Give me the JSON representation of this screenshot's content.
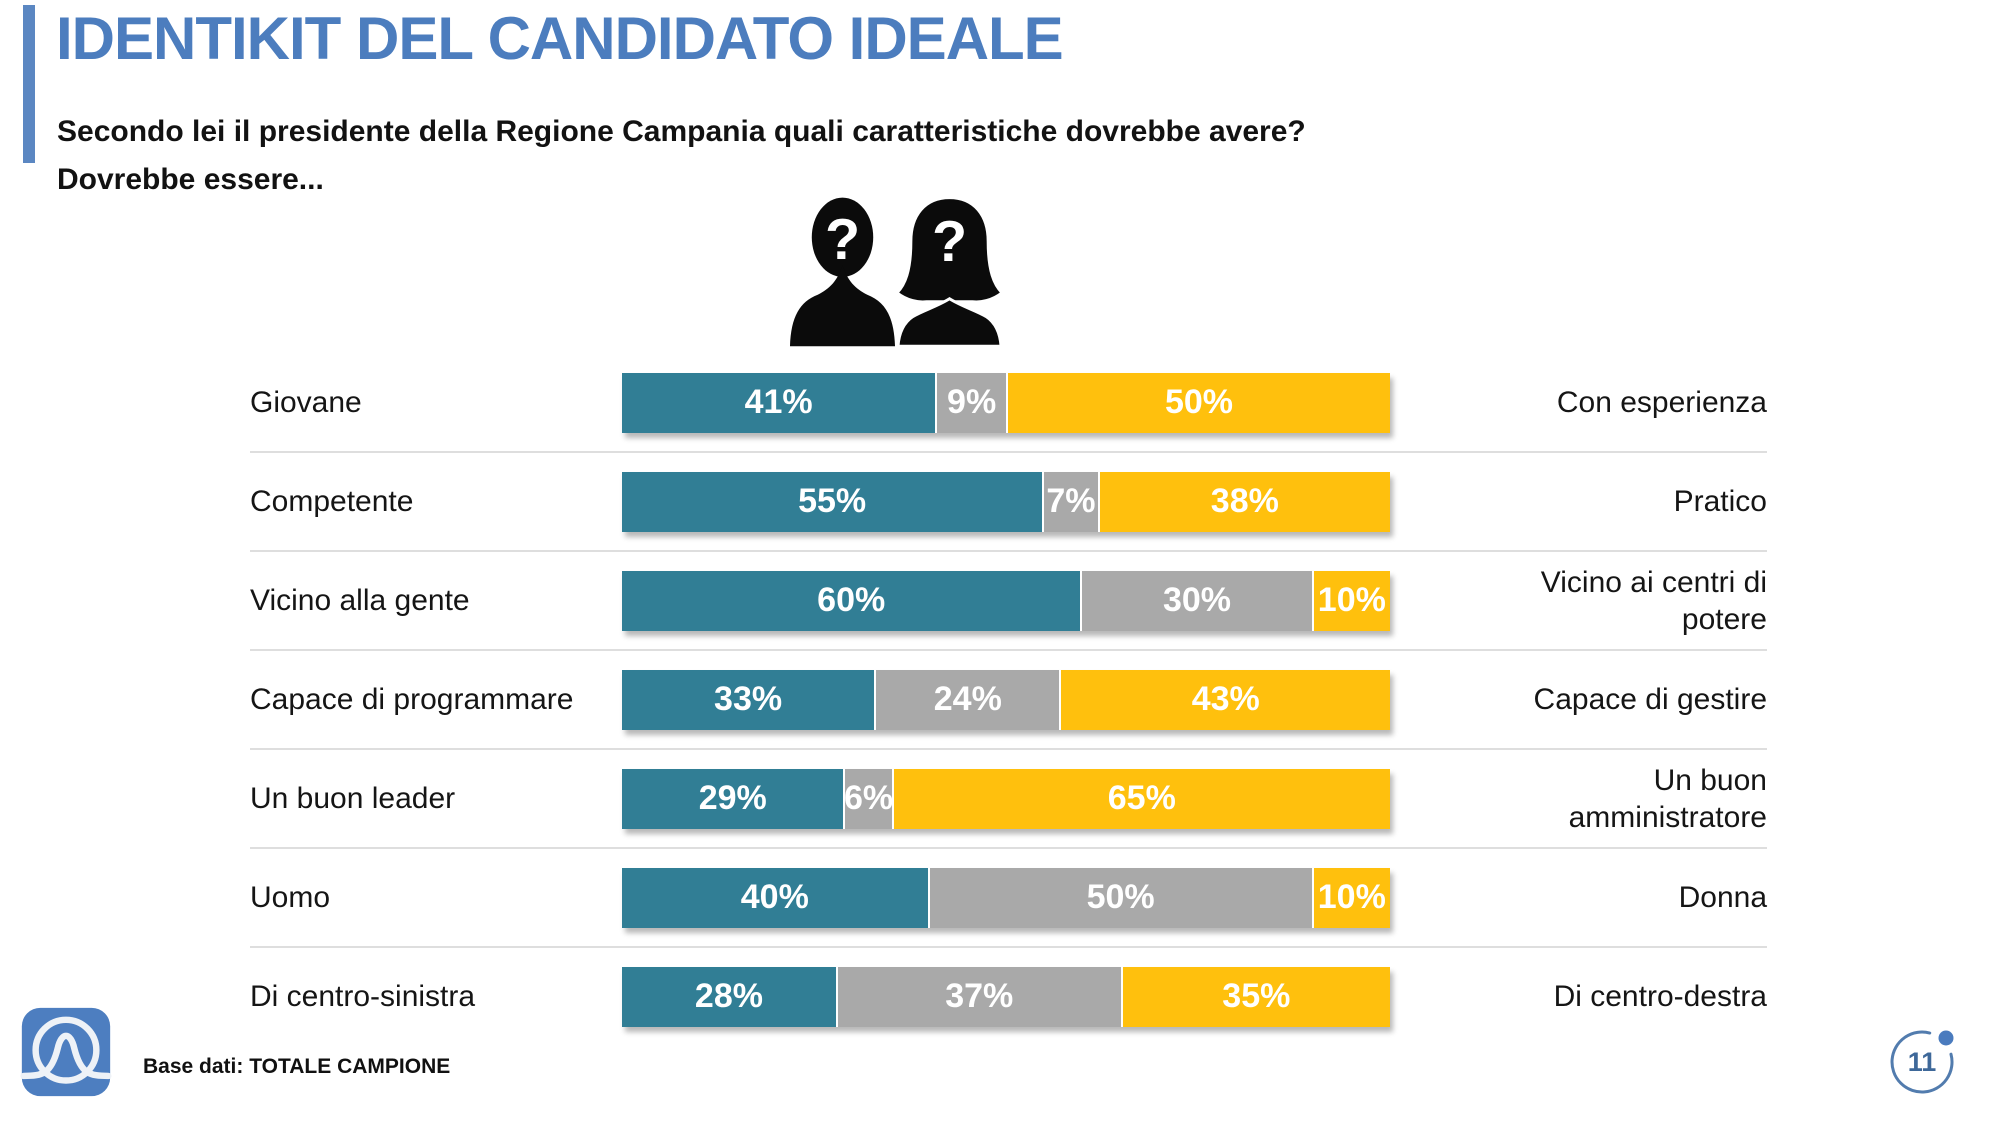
{
  "header": {
    "title": "IDENTIKIT DEL CANDIDATO IDEALE",
    "subtitle_line1": "Secondo lei il presidente della Regione Campania quali caratteristiche dovrebbe avere?",
    "subtitle_line2": "Dovrebbe essere...",
    "persons_icon": "two-anonymous-silhouettes-with-question-marks"
  },
  "footer": {
    "base_note": "Base dati: TOTALE CAMPIONE",
    "page_number": "11",
    "logo_icon": "bell-curve-circle-logo"
  },
  "colors": {
    "title_blue": "#4C7DBE",
    "accent_bar_blue": "#5B87C2",
    "badge_blue": "#4A7BBE",
    "divider_gray": "#DEDEDE"
  },
  "chart_data": {
    "type": "bar",
    "variant": "horizontal-stacked-100pct-semantic-differential",
    "unit": "%",
    "legend_position": "none",
    "grid": "row-dividers-only",
    "colors": {
      "left": "#317E95",
      "neutral": "#A9A9A9",
      "right": "#FFC00D"
    },
    "series_names": [
      "left-option",
      "neutral",
      "right-option"
    ],
    "rows": [
      {
        "left_label": "Giovane",
        "values": [
          41,
          9,
          50
        ],
        "right_label": "Con esperienza"
      },
      {
        "left_label": "Competente",
        "values": [
          55,
          7,
          38
        ],
        "right_label": "Pratico"
      },
      {
        "left_label": "Vicino alla gente",
        "values": [
          60,
          30,
          10
        ],
        "right_label": "Vicino ai centri di\npotere"
      },
      {
        "left_label": "Capace di programmare",
        "values": [
          33,
          24,
          43
        ],
        "right_label": "Capace di gestire"
      },
      {
        "left_label": "Un buon leader",
        "values": [
          29,
          6,
          65
        ],
        "right_label": "Un buon\namministratore"
      },
      {
        "left_label": "Uomo",
        "values": [
          40,
          50,
          10
        ],
        "right_label": "Donna"
      },
      {
        "left_label": "Di centro-sinistra",
        "values": [
          28,
          37,
          35
        ],
        "right_label": "Di centro-destra"
      }
    ]
  }
}
